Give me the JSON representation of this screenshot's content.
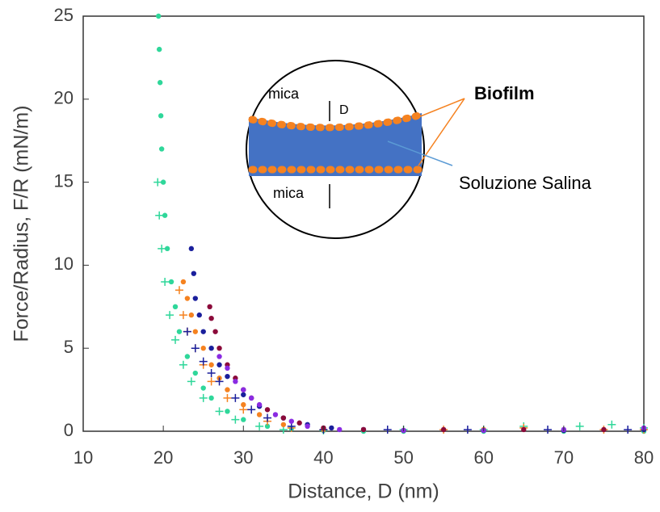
{
  "chart_data": {
    "type": "scatter",
    "xlabel": "Distance, D (nm)",
    "ylabel": "Force/Radius, F/R (mN/m)",
    "xlim": [
      10,
      80
    ],
    "xticks": [
      10,
      20,
      30,
      40,
      50,
      60,
      70,
      80
    ],
    "ylim": [
      0,
      25
    ],
    "yticks": [
      0,
      5,
      10,
      15,
      20,
      25
    ],
    "annotations": [
      "mica",
      "D",
      "mica",
      "Biofilm",
      "Soluzione Salina"
    ],
    "series": [
      {
        "color": "#2fd79a",
        "marker": "o",
        "x": [
          19.4,
          19.5,
          19.6,
          19.7,
          19.8,
          20.0,
          20.2,
          20.5,
          21,
          21.5,
          22,
          23,
          24,
          25,
          26,
          28,
          30,
          33,
          36,
          40,
          45,
          50,
          60,
          70,
          80
        ],
        "values": [
          25,
          23,
          21,
          19,
          17,
          15,
          13,
          11,
          9,
          7.5,
          6,
          4.5,
          3.5,
          2.6,
          2,
          1.2,
          0.7,
          0.3,
          0.15,
          0.05,
          0,
          0,
          0,
          0,
          0
        ]
      },
      {
        "color": "#2fd79a",
        "marker": "+",
        "x": [
          19.3,
          19.5,
          19.8,
          20.2,
          20.8,
          21.5,
          22.5,
          23.5,
          25,
          27,
          29,
          32,
          35,
          40,
          50,
          60,
          65,
          72,
          76,
          80
        ],
        "values": [
          15,
          13,
          11,
          9,
          7,
          5.5,
          4,
          3,
          2,
          1.2,
          0.7,
          0.3,
          0.1,
          0.05,
          0.1,
          0.1,
          0.3,
          0.3,
          0.4,
          0.2
        ]
      },
      {
        "color": "#f58220",
        "marker": "o",
        "x": [
          22.5,
          23,
          23.5,
          24,
          25,
          26,
          27,
          28,
          30,
          32,
          35,
          40,
          50,
          60,
          70,
          80
        ],
        "values": [
          9,
          8,
          7,
          6,
          5,
          4,
          3.2,
          2.5,
          1.6,
          1,
          0.4,
          0.1,
          0.05,
          0.1,
          0.05,
          0.1
        ]
      },
      {
        "color": "#f58220",
        "marker": "+",
        "x": [
          22,
          22.5,
          23,
          24,
          25,
          26,
          28,
          30,
          33,
          36,
          40,
          55,
          65,
          75,
          80
        ],
        "values": [
          8.5,
          7,
          6,
          5,
          4,
          3,
          2,
          1.3,
          0.6,
          0.2,
          0.1,
          0.1,
          0.2,
          0.1,
          0.1
        ]
      },
      {
        "color": "#1a1f9c",
        "marker": "o",
        "x": [
          23.5,
          23.8,
          24,
          24.5,
          25,
          26,
          27,
          28,
          30,
          32,
          35,
          38,
          41,
          45,
          50,
          60,
          70,
          80
        ],
        "values": [
          11,
          9.5,
          8,
          7,
          6,
          5,
          4,
          3.3,
          2.2,
          1.5,
          0.8,
          0.4,
          0.2,
          0.1,
          0.05,
          0.05,
          0.05,
          0.1
        ]
      },
      {
        "color": "#1a1f9c",
        "marker": "+",
        "x": [
          23,
          24,
          25,
          26,
          27,
          29,
          31,
          33,
          36,
          40,
          48,
          58,
          68,
          78
        ],
        "values": [
          6,
          5,
          4.2,
          3.5,
          3,
          2,
          1.3,
          0.8,
          0.3,
          0.1,
          0.1,
          0.1,
          0.1,
          0.1
        ]
      },
      {
        "color": "#8b0a3a",
        "marker": "o",
        "x": [
          25.8,
          26,
          26.5,
          27,
          28,
          29,
          30,
          31,
          33,
          35,
          37,
          40,
          45,
          55,
          65,
          75
        ],
        "values": [
          7.5,
          6.8,
          6,
          5,
          4,
          3.2,
          2.5,
          2,
          1.3,
          0.8,
          0.5,
          0.2,
          0.1,
          0.1,
          0.1,
          0.1
        ]
      },
      {
        "color": "#8a2be2",
        "marker": "o",
        "x": [
          27,
          28,
          29,
          30,
          31,
          32,
          34,
          36,
          38,
          42,
          50,
          60,
          70,
          80
        ],
        "values": [
          4.5,
          3.8,
          3,
          2.5,
          2,
          1.6,
          1,
          0.6,
          0.3,
          0.1,
          0.05,
          0.05,
          0.1,
          0.2
        ]
      }
    ]
  }
}
